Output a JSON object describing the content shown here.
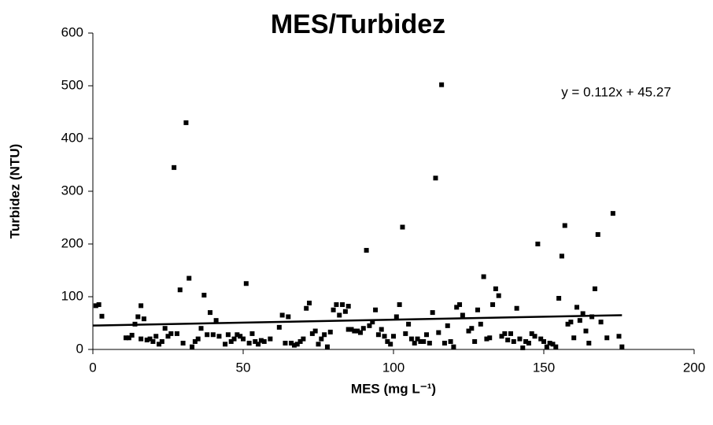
{
  "chart_data": {
    "type": "scatter",
    "title": "MES/Turbidez",
    "xlabel": "MES (mg L⁻¹)",
    "ylabel": "Turbidez (NTU)",
    "xlim": [
      0,
      200
    ],
    "xticks": [
      0,
      50,
      100,
      150,
      200
    ],
    "ylim": [
      0,
      600
    ],
    "yticks": [
      0,
      100,
      200,
      300,
      400,
      500,
      600
    ],
    "color": "#000000",
    "grid": false,
    "x": [
      1,
      2,
      3,
      11,
      12,
      13,
      14,
      15,
      16,
      16,
      17,
      18,
      19,
      20,
      21,
      22,
      23,
      24,
      25,
      26,
      27,
      28,
      29,
      30,
      31,
      32,
      33,
      34,
      35,
      36,
      37,
      38,
      39,
      40,
      41,
      42,
      44,
      45,
      46,
      47,
      48,
      49,
      50,
      51,
      52,
      53,
      54,
      55,
      56,
      57,
      59,
      62,
      63,
      64,
      65,
      66,
      67,
      68,
      69,
      70,
      71,
      72,
      73,
      74,
      75,
      76,
      77,
      78,
      79,
      80,
      81,
      82,
      83,
      84,
      85,
      85,
      86,
      87,
      88,
      89,
      90,
      91,
      92,
      93,
      94,
      95,
      96,
      97,
      98,
      99,
      100,
      101,
      102,
      103,
      104,
      105,
      106,
      107,
      108,
      109,
      110,
      111,
      112,
      113,
      114,
      115,
      116,
      117,
      118,
      119,
      120,
      121,
      122,
      123,
      125,
      126,
      127,
      128,
      129,
      130,
      131,
      132,
      133,
      134,
      135,
      136,
      137,
      138,
      139,
      140,
      141,
      142,
      143,
      144,
      145,
      146,
      147,
      148,
      149,
      150,
      151,
      152,
      153,
      154,
      155,
      156,
      157,
      158,
      159,
      160,
      161,
      162,
      163,
      164,
      165,
      166,
      167,
      168,
      169,
      171,
      173,
      175,
      176
    ],
    "values": [
      83,
      85,
      63,
      22,
      22,
      27,
      48,
      62,
      83,
      20,
      58,
      18,
      20,
      15,
      25,
      10,
      15,
      40,
      25,
      30,
      345,
      30,
      113,
      12,
      430,
      135,
      5,
      15,
      20,
      40,
      103,
      28,
      70,
      28,
      55,
      25,
      10,
      28,
      15,
      20,
      28,
      25,
      20,
      125,
      12,
      30,
      15,
      10,
      17,
      15,
      20,
      42,
      65,
      12,
      62,
      12,
      8,
      10,
      15,
      20,
      78,
      88,
      30,
      35,
      10,
      20,
      28,
      5,
      33,
      75,
      85,
      65,
      85,
      72,
      82,
      38,
      38,
      35,
      35,
      32,
      40,
      188,
      45,
      52,
      75,
      28,
      38,
      25,
      15,
      10,
      25,
      62,
      85,
      232,
      30,
      48,
      20,
      12,
      20,
      15,
      15,
      28,
      12,
      70,
      325,
      32,
      502,
      12,
      45,
      15,
      5,
      80,
      85,
      65,
      35,
      40,
      15,
      75,
      48,
      138,
      20,
      22,
      85,
      115,
      102,
      25,
      30,
      18,
      30,
      15,
      78,
      20,
      3,
      15,
      12,
      30,
      25,
      200,
      20,
      15,
      5,
      12,
      10,
      5,
      97,
      177,
      235,
      48,
      52,
      22,
      80,
      55,
      68,
      35,
      12,
      62,
      115,
      218,
      52,
      22,
      258,
      25,
      5
    ],
    "trendline": {
      "label": "y = 0.112x + 45.27",
      "slope": 0.112,
      "intercept": 45.27,
      "x": [
        0,
        176
      ]
    }
  }
}
